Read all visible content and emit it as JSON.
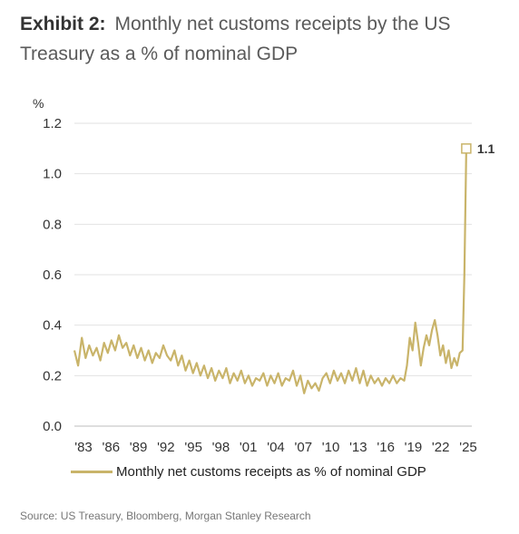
{
  "title": {
    "exhibit": "Exhibit 2:",
    "text": "Monthly net customs receipts by the US Treasury as a % of nominal GDP"
  },
  "source": "Source: US Treasury, Bloomberg, Morgan Stanley Research",
  "colors": {
    "line": "#C9B46A",
    "grid": "#e2e2e2",
    "axis": "#bdbdbd"
  },
  "chart_data": {
    "type": "line",
    "title": "Monthly net customs receipts by the US Treasury as a % of nominal GDP",
    "ylabel": "%",
    "ylim": [
      0,
      1.2
    ],
    "yticks": [
      "0.0",
      "0.2",
      "0.4",
      "0.6",
      "0.8",
      "1.0",
      "1.2"
    ],
    "xlim": [
      1983,
      2025.9
    ],
    "xticks": [
      "'83",
      "'86",
      "'89",
      "'92",
      "'95",
      "'98",
      "'01",
      "'04",
      "'07",
      "'10",
      "'13",
      "'16",
      "'19",
      "'22",
      "'25"
    ],
    "grid": true,
    "legend": "bottom",
    "annotation": {
      "x": 2025.3,
      "y": 1.1,
      "label": "1.1"
    },
    "series": [
      {
        "name": "Monthly net customs receipts as % of nominal GDP",
        "x": [
          1983.0,
          1983.4,
          1983.8,
          1984.2,
          1984.6,
          1985.0,
          1985.4,
          1985.8,
          1986.2,
          1986.6,
          1987.0,
          1987.4,
          1987.8,
          1988.2,
          1988.6,
          1989.0,
          1989.4,
          1989.8,
          1990.2,
          1990.6,
          1991.0,
          1991.4,
          1991.8,
          1992.2,
          1992.6,
          1993.0,
          1993.4,
          1993.8,
          1994.2,
          1994.6,
          1995.0,
          1995.4,
          1995.8,
          1996.2,
          1996.6,
          1997.0,
          1997.4,
          1997.8,
          1998.2,
          1998.6,
          1999.0,
          1999.4,
          1999.8,
          2000.2,
          2000.6,
          2001.0,
          2001.4,
          2001.8,
          2002.2,
          2002.6,
          2003.0,
          2003.4,
          2003.8,
          2004.2,
          2004.6,
          2005.0,
          2005.4,
          2005.8,
          2006.2,
          2006.6,
          2007.0,
          2007.4,
          2007.8,
          2008.2,
          2008.6,
          2009.0,
          2009.4,
          2009.8,
          2010.2,
          2010.6,
          2011.0,
          2011.4,
          2011.8,
          2012.2,
          2012.6,
          2013.0,
          2013.4,
          2013.8,
          2014.2,
          2014.6,
          2015.0,
          2015.4,
          2015.8,
          2016.2,
          2016.6,
          2017.0,
          2017.4,
          2017.8,
          2018.2,
          2018.6,
          2018.9,
          2019.2,
          2019.5,
          2019.8,
          2020.1,
          2020.4,
          2020.7,
          2021.0,
          2021.3,
          2021.6,
          2021.9,
          2022.2,
          2022.5,
          2022.8,
          2023.1,
          2023.4,
          2023.7,
          2024.0,
          2024.3,
          2024.6,
          2024.9,
          2025.1,
          2025.3
        ],
        "values": [
          0.3,
          0.24,
          0.35,
          0.27,
          0.32,
          0.28,
          0.31,
          0.26,
          0.33,
          0.29,
          0.34,
          0.3,
          0.36,
          0.31,
          0.33,
          0.28,
          0.32,
          0.27,
          0.31,
          0.26,
          0.3,
          0.25,
          0.29,
          0.27,
          0.32,
          0.28,
          0.26,
          0.3,
          0.24,
          0.28,
          0.22,
          0.26,
          0.21,
          0.25,
          0.2,
          0.24,
          0.19,
          0.23,
          0.18,
          0.22,
          0.19,
          0.23,
          0.17,
          0.21,
          0.18,
          0.22,
          0.17,
          0.2,
          0.16,
          0.19,
          0.18,
          0.21,
          0.16,
          0.2,
          0.17,
          0.21,
          0.16,
          0.19,
          0.18,
          0.22,
          0.16,
          0.2,
          0.13,
          0.18,
          0.15,
          0.17,
          0.14,
          0.19,
          0.21,
          0.17,
          0.22,
          0.18,
          0.21,
          0.17,
          0.22,
          0.18,
          0.23,
          0.17,
          0.22,
          0.16,
          0.2,
          0.17,
          0.19,
          0.16,
          0.19,
          0.17,
          0.2,
          0.17,
          0.19,
          0.18,
          0.24,
          0.35,
          0.3,
          0.41,
          0.33,
          0.24,
          0.31,
          0.36,
          0.32,
          0.38,
          0.42,
          0.36,
          0.28,
          0.32,
          0.25,
          0.3,
          0.23,
          0.27,
          0.24,
          0.29,
          0.3,
          0.6,
          1.1
        ]
      }
    ]
  }
}
